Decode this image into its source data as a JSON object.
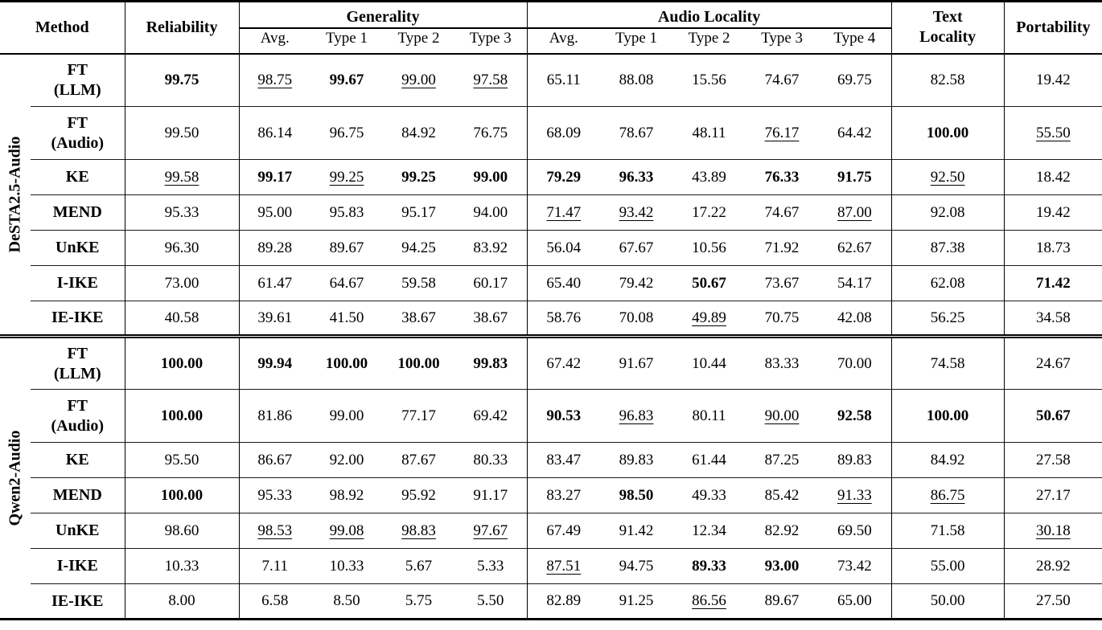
{
  "style_legend": {
    "b:": "bold (best result)",
    "u:": "underlined (second-best result)"
  },
  "table": {
    "header": {
      "method": "Method",
      "reliability": "Reliability",
      "generality": "Generality",
      "audio_locality": "Audio Locality",
      "text_locality": "Text\nLocality",
      "portability": "Portability",
      "generality_sub": [
        "Avg.",
        "Type 1",
        "Type 2",
        "Type 3"
      ],
      "audio_locality_sub": [
        "Avg.",
        "Type 1",
        "Type 2",
        "Type 3",
        "Type 4"
      ]
    },
    "column_order": [
      "Reliability",
      "Generality Avg.",
      "Generality Type 1",
      "Generality Type 2",
      "Generality Type 3",
      "Audio Locality Avg.",
      "Audio Locality Type 1",
      "Audio Locality Type 2",
      "Audio Locality Type 3",
      "Audio Locality Type 4",
      "Text Locality",
      "Portability"
    ],
    "groups": [
      {
        "label": "DeSTA2.5-Audio",
        "rows": [
          {
            "method": "FT\n(LLM)",
            "tall": true,
            "cells": [
              "b:99.75",
              "u:98.75",
              "b:99.67",
              "u:99.00",
              "u:97.58",
              "65.11",
              "88.08",
              "15.56",
              "74.67",
              "69.75",
              "82.58",
              "19.42"
            ]
          },
          {
            "method": "FT\n(Audio)",
            "tall": true,
            "cells": [
              "99.50",
              "86.14",
              "96.75",
              "84.92",
              "76.75",
              "68.09",
              "78.67",
              "48.11",
              "u:76.17",
              "64.42",
              "b:100.00",
              "u:55.50"
            ]
          },
          {
            "method": "KE",
            "tall": false,
            "cells": [
              "u:99.58",
              "b:99.17",
              "u:99.25",
              "b:99.25",
              "b:99.00",
              "b:79.29",
              "b:96.33",
              "43.89",
              "b:76.33",
              "b:91.75",
              "u:92.50",
              "18.42"
            ]
          },
          {
            "method": "MEND",
            "tall": false,
            "cells": [
              "95.33",
              "95.00",
              "95.83",
              "95.17",
              "94.00",
              "u:71.47",
              "u:93.42",
              "17.22",
              "74.67",
              "u:87.00",
              "92.08",
              "19.42"
            ]
          },
          {
            "method": "UnKE",
            "tall": false,
            "cells": [
              "96.30",
              "89.28",
              "89.67",
              "94.25",
              "83.92",
              "56.04",
              "67.67",
              "10.56",
              "71.92",
              "62.67",
              "87.38",
              "18.73"
            ]
          },
          {
            "method": "I-IKE",
            "tall": false,
            "cells": [
              "73.00",
              "61.47",
              "64.67",
              "59.58",
              "60.17",
              "65.40",
              "79.42",
              "b:50.67",
              "73.67",
              "54.17",
              "62.08",
              "b:71.42"
            ]
          },
          {
            "method": "IE-IKE",
            "tall": false,
            "cells": [
              "40.58",
              "39.61",
              "41.50",
              "38.67",
              "38.67",
              "58.76",
              "70.08",
              "u:49.89",
              "70.75",
              "42.08",
              "56.25",
              "34.58"
            ]
          }
        ]
      },
      {
        "label": "Qwen2-Audio",
        "rows": [
          {
            "method": "FT\n(LLM)",
            "tall": true,
            "cells": [
              "b:100.00",
              "b:99.94",
              "b:100.00",
              "b:100.00",
              "b:99.83",
              "67.42",
              "91.67",
              "10.44",
              "83.33",
              "70.00",
              "74.58",
              "24.67"
            ]
          },
          {
            "method": "FT\n(Audio)",
            "tall": true,
            "cells": [
              "b:100.00",
              "81.86",
              "99.00",
              "77.17",
              "69.42",
              "b:90.53",
              "u:96.83",
              "80.11",
              "u:90.00",
              "b:92.58",
              "b:100.00",
              "b:50.67"
            ]
          },
          {
            "method": "KE",
            "tall": false,
            "cells": [
              "95.50",
              "86.67",
              "92.00",
              "87.67",
              "80.33",
              "83.47",
              "89.83",
              "61.44",
              "87.25",
              "89.83",
              "84.92",
              "27.58"
            ]
          },
          {
            "method": "MEND",
            "tall": false,
            "cells": [
              "b:100.00",
              "95.33",
              "98.92",
              "95.92",
              "91.17",
              "83.27",
              "b:98.50",
              "49.33",
              "85.42",
              "u:91.33",
              "u:86.75",
              "27.17"
            ]
          },
          {
            "method": "UnKE",
            "tall": false,
            "cells": [
              "98.60",
              "u:98.53",
              "u:99.08",
              "u:98.83",
              "u:97.67",
              "67.49",
              "91.42",
              "12.34",
              "82.92",
              "69.50",
              "71.58",
              "u:30.18"
            ]
          },
          {
            "method": "I-IKE",
            "tall": false,
            "cells": [
              "10.33",
              "7.11",
              "10.33",
              "5.67",
              "5.33",
              "u:87.51",
              "94.75",
              "b:89.33",
              "b:93.00",
              "73.42",
              "55.00",
              "28.92"
            ]
          },
          {
            "method": "IE-IKE",
            "tall": false,
            "cells": [
              "8.00",
              "6.58",
              "8.50",
              "5.75",
              "5.50",
              "82.89",
              "91.25",
              "u:86.56",
              "89.67",
              "65.00",
              "50.00",
              "27.50"
            ]
          }
        ]
      }
    ]
  }
}
